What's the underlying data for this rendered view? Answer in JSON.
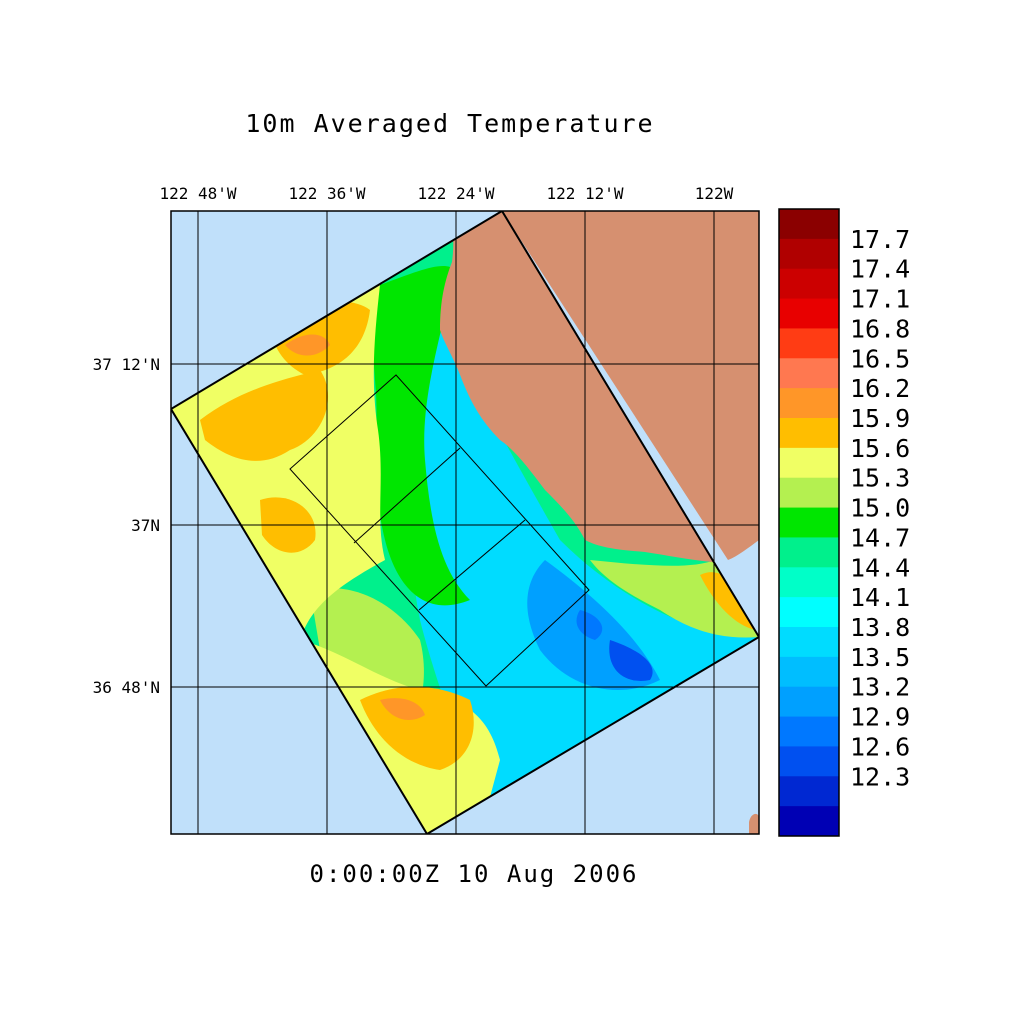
{
  "title": "10m Averaged Temperature",
  "timestamp": "0:00:00Z  10 Aug 2006",
  "longitude_ticks": [
    "122 48'W",
    "122 36'W",
    "122 24'W",
    "122 12'W",
    "122W"
  ],
  "latitude_ticks": [
    "37 12'N",
    "37N",
    "36 48'N"
  ],
  "colorbar": {
    "labels": [
      "17.7",
      "17.4",
      "17.1",
      "16.8",
      "16.5",
      "16.2",
      "15.9",
      "15.6",
      "15.3",
      "15.0",
      "14.7",
      "14.4",
      "14.1",
      "13.8",
      "13.5",
      "13.2",
      "12.9",
      "12.6",
      "12.3"
    ],
    "colors": [
      "#8b0000",
      "#b00000",
      "#cc0000",
      "#e80000",
      "#ff3c14",
      "#ff7850",
      "#ff9628",
      "#ffbe00",
      "#f0ff64",
      "#b4f050",
      "#00e600",
      "#00f08c",
      "#00ffc8",
      "#00ffff",
      "#00dcff",
      "#00beff",
      "#00a0ff",
      "#0078ff",
      "#0050f0",
      "#0028d2",
      "#0000b4"
    ]
  },
  "colors": {
    "ocean": "#c0e0fa",
    "land": "#d69070"
  }
}
